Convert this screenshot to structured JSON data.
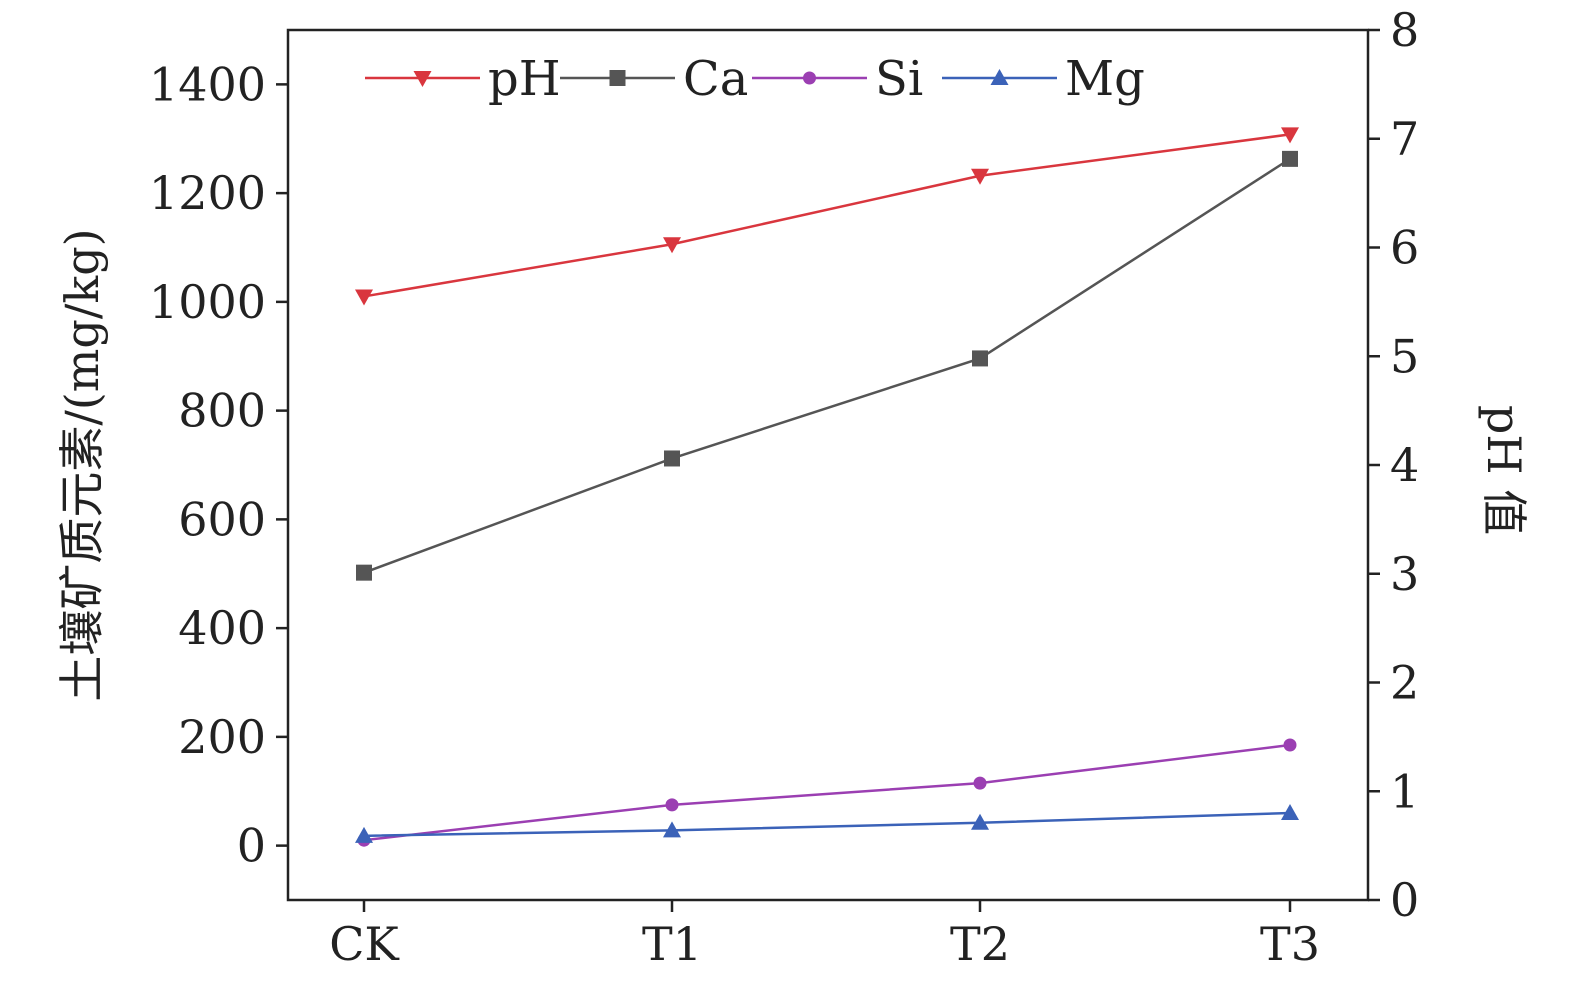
{
  "chart_data": {
    "type": "line",
    "categories": [
      "CK",
      "T1",
      "T2",
      "T3"
    ],
    "y_left": {
      "label": "土壤矿质元素/(mg/kg)",
      "range": [
        -100,
        1500
      ],
      "ticks": [
        0,
        200,
        400,
        600,
        800,
        1000,
        1200,
        1400
      ]
    },
    "y_right": {
      "label": "pH 值",
      "range": [
        0,
        8
      ],
      "ticks": [
        0,
        1,
        2,
        3,
        4,
        5,
        6,
        7,
        8
      ]
    },
    "series": [
      {
        "name": "pH",
        "axis": "right",
        "values": [
          5.55,
          6.03,
          6.66,
          7.04
        ],
        "color": "#d9363e",
        "marker": "triangle-down"
      },
      {
        "name": "Ca",
        "axis": "left",
        "values": [
          502,
          712,
          896,
          1263
        ],
        "color": "#555555",
        "marker": "square"
      },
      {
        "name": "Si",
        "axis": "left",
        "values": [
          10,
          75,
          115,
          185
        ],
        "color": "#9b3fb2",
        "marker": "circle"
      },
      {
        "name": "Mg",
        "axis": "left",
        "values": [
          18,
          28,
          42,
          60
        ],
        "color": "#3b62b8",
        "marker": "triangle-up"
      }
    ],
    "legend_position": "top-left",
    "grid": false
  }
}
